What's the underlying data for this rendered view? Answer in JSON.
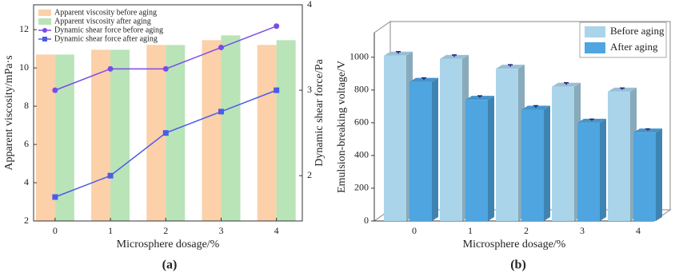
{
  "chart_data": [
    {
      "type": "bar-line",
      "panel_label": "(a)",
      "x_label": "Microsphere dosage/%",
      "y_label": "Apparent viscosity/mPa·s",
      "y2_label": "Dynamic shear force/Pa",
      "categories": [
        "0",
        "1",
        "2",
        "3",
        "4"
      ],
      "ylim": [
        2,
        13.3
      ],
      "yticks": [
        2,
        4,
        6,
        8,
        10,
        12
      ],
      "y2lim": [
        1.47,
        4
      ],
      "y2ticks": [
        2,
        3,
        4
      ],
      "series": [
        {
          "name": "Apparent viscosity before aging",
          "kind": "bar",
          "color": "#fcd0a8",
          "values": [
            10.7,
            10.95,
            11.2,
            11.45,
            11.2
          ]
        },
        {
          "name": "Apparent viscosity after aging",
          "kind": "bar",
          "color": "#b8e4b8",
          "values": [
            10.7,
            10.95,
            11.2,
            11.7,
            11.45
          ]
        },
        {
          "name": "Dynamic shear force before aging",
          "kind": "line",
          "marker": "circle",
          "axis": "y2",
          "color": "#7b4be8",
          "values": [
            3.0,
            3.25,
            3.25,
            3.5,
            3.75
          ]
        },
        {
          "name": "Dynamic shear force after aging",
          "kind": "line",
          "marker": "square",
          "axis": "y2",
          "color": "#4a5ce8",
          "values": [
            1.75,
            2.0,
            2.5,
            2.75,
            3.0
          ]
        }
      ]
    },
    {
      "type": "bar3d",
      "panel_label": "(b)",
      "x_label": "Microsphere dosage/%",
      "y_label": "Emulsion-breaking voltage/V",
      "categories": [
        "0",
        "1",
        "2",
        "3",
        "4"
      ],
      "ylim": [
        0,
        1150
      ],
      "yticks": [
        0,
        200,
        400,
        600,
        800,
        1000
      ],
      "series": [
        {
          "name": "Before aging",
          "color": "#aad4ea",
          "values": [
            1010,
            990,
            930,
            820,
            790
          ],
          "errors": [
            12,
            12,
            12,
            12,
            10
          ]
        },
        {
          "name": "After aging",
          "color": "#4ea5e0",
          "values": [
            850,
            740,
            680,
            600,
            540
          ],
          "errors": [
            12,
            12,
            12,
            10,
            10
          ]
        }
      ]
    }
  ]
}
